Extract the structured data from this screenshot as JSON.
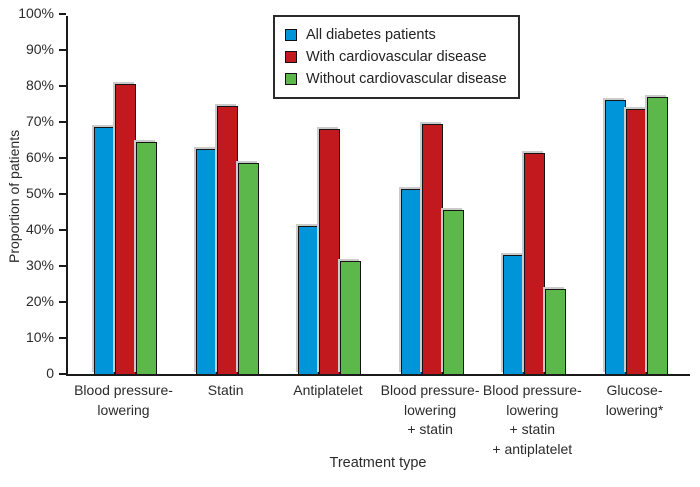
{
  "chart_data": {
    "type": "bar",
    "title": "",
    "xlabel": "Treatment type",
    "ylabel": "Proportion of patients",
    "ylim": [
      0,
      100
    ],
    "grid": false,
    "legend_position": "top-center-inside",
    "ytick_values": [
      0,
      10,
      20,
      30,
      40,
      50,
      60,
      70,
      80,
      90,
      100
    ],
    "ytick_labels": [
      "0",
      "10%",
      "20%",
      "30%",
      "40%",
      "50%",
      "60%",
      "70%",
      "80%",
      "90%",
      "100%"
    ],
    "categories": [
      "Blood pressure-lowering",
      "Statin",
      "Antiplatelet",
      "Blood pressure-lowering + statin",
      "Blood pressure-lowering + statin + antiplatelet",
      "Glucose-lowering*"
    ],
    "category_label_lines": [
      [
        "Blood pressure-",
        "lowering"
      ],
      [
        "Statin"
      ],
      [
        "Antiplatelet"
      ],
      [
        "Blood pressure-",
        "lowering",
        "+ statin"
      ],
      [
        "Blood pressure-",
        "lowering",
        "+ statin",
        "+ antiplatelet"
      ],
      [
        "Glucose-",
        "lowering*"
      ]
    ],
    "series": [
      {
        "name": "All diabetes patients",
        "color": "#0095D9",
        "values": [
          68.5,
          62.5,
          41.0,
          51.5,
          33.0,
          76.0
        ]
      },
      {
        "name": "With cardiovascular disease",
        "color": "#C2191F",
        "values": [
          80.5,
          74.5,
          68.0,
          69.5,
          61.5,
          73.5
        ]
      },
      {
        "name": "Without cardiovascular disease",
        "color": "#5CB84B",
        "values": [
          64.5,
          58.5,
          31.5,
          45.5,
          23.5,
          77.0
        ]
      }
    ]
  }
}
